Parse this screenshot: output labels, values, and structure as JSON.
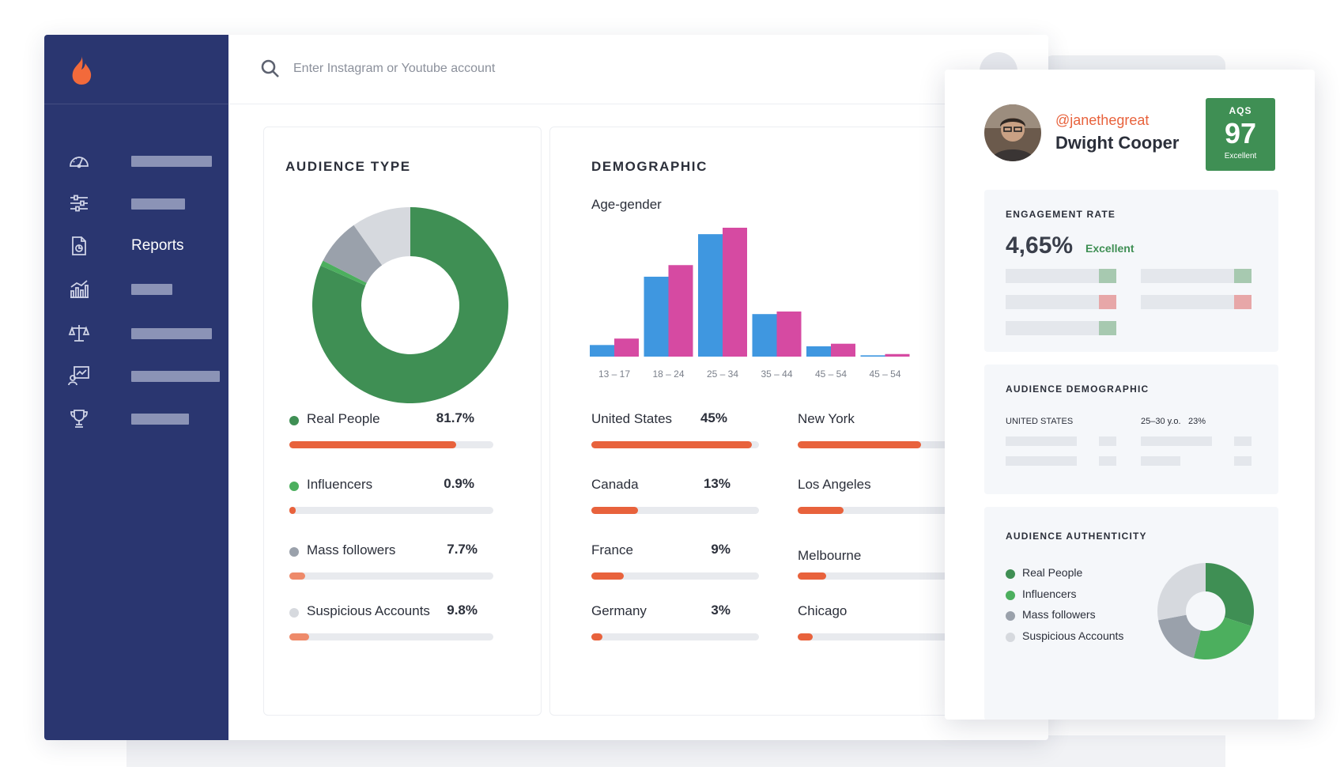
{
  "search": {
    "placeholder": "Enter Instagram or Youtube account"
  },
  "sidebar": {
    "items": [
      {
        "icon": "dashboard-icon"
      },
      {
        "icon": "sliders-icon"
      },
      {
        "icon": "report-icon",
        "label": "Reports"
      },
      {
        "icon": "analytics-icon"
      },
      {
        "icon": "compare-icon"
      },
      {
        "icon": "campaign-icon"
      },
      {
        "icon": "trophy-icon"
      }
    ]
  },
  "audience_type": {
    "title": "AUDIENCE TYPE",
    "rows": [
      {
        "name": "Real People",
        "pct": "81.7%",
        "value": 81.7,
        "dot": "#3f8f54",
        "bar": "#e8623c"
      },
      {
        "name": "Influencers",
        "pct": "0.9%",
        "value": 0.9,
        "dot": "#4caf5e",
        "bar": "#e8623c"
      },
      {
        "name": "Mass followers",
        "pct": "7.7%",
        "value": 7.7,
        "dot": "#9aa1ab",
        "bar": "#ee8a6a"
      },
      {
        "name": "Suspicious Accounts",
        "pct": "9.8%",
        "value": 9.8,
        "dot": "#d6d9de",
        "bar": "#ee8a6a"
      }
    ]
  },
  "demographic": {
    "title": "DEMOGRAPHIC",
    "subtitle": "Age-gender",
    "countries": [
      {
        "name": "United States",
        "pct": "45%",
        "value": 45
      },
      {
        "name": "Canada",
        "pct": "13%",
        "value": 13
      },
      {
        "name": "France",
        "pct": "9%",
        "value": 9
      },
      {
        "name": "Germany",
        "pct": "3%",
        "value": 3
      }
    ],
    "cities": [
      {
        "name": "New York",
        "value": 65
      },
      {
        "name": "Los Angeles",
        "value": 24
      },
      {
        "name": "Melbourne",
        "value": 15
      },
      {
        "name": "Chicago",
        "value": 8
      }
    ]
  },
  "chart_data": {
    "type": "bar",
    "title": "",
    "xlabel": "",
    "ylabel": "",
    "categories": [
      "13 – 17",
      "18 – 24",
      "25 – 34",
      "35 – 44",
      "45 – 54",
      "45 – 54"
    ],
    "series": [
      {
        "values": [
          9,
          62,
          95,
          33,
          8,
          1
        ],
        "color": "#3f97e0"
      },
      {
        "values": [
          14,
          71,
          100,
          35,
          10,
          2
        ],
        "color": "#d64aa2"
      }
    ],
    "ylim": [
      0,
      100
    ],
    "grid": false
  },
  "profile": {
    "handle": "@janethegreat",
    "name": "Dwight Cooper",
    "aqs_label": "AQS",
    "aqs_value": "97",
    "aqs_quality": "Excellent",
    "engagement": {
      "title": "ENGAGEMENT RATE",
      "value": "4,65%",
      "quality": "Excellent"
    },
    "audience_demographic": {
      "title": "AUDIENCE DEMOGRAPHIC",
      "country": "UNITED STATES",
      "age": "25–30 y.o.",
      "pct": "23%"
    },
    "audience_authenticity": {
      "title": "AUDIENCE AUTHENTICITY",
      "legend": [
        {
          "name": "Real People",
          "color": "#3f8f54"
        },
        {
          "name": "Influencers",
          "color": "#4caf5e"
        },
        {
          "name": "Mass followers",
          "color": "#9aa1ab"
        },
        {
          "name": "Suspicious Accounts",
          "color": "#d6d9de"
        }
      ]
    }
  },
  "colors": {
    "sidebar": "#2a3670",
    "accent": "#e8623c",
    "green": "#3f8f54"
  }
}
